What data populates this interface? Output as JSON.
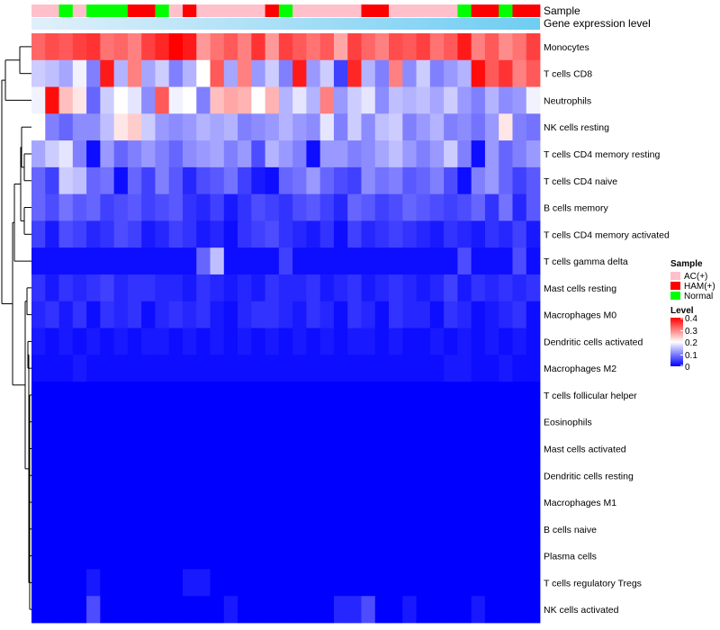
{
  "colors": {
    "low": "#0000ff",
    "mid": "#ffffff",
    "high": "#ff0000",
    "sample_groups": {
      "AC(+)": "#ffc0cb",
      "HAM(+)": "#ff0000",
      "Normal": "#00ff00"
    },
    "expression_bar": {
      "from": "#e0f0fa",
      "to": "#6ecdf2"
    }
  },
  "chart_data": {
    "type": "heatmap",
    "annotations": [
      {
        "label": "Sample",
        "type": "categorical"
      },
      {
        "label": "Gene expression level",
        "type": "gradient"
      }
    ],
    "sample_groups": [
      "AC(+)",
      "AC(+)",
      "Normal",
      "AC(+)",
      "Normal",
      "Normal",
      "Normal",
      "HAM(+)",
      "HAM(+)",
      "Normal",
      "AC(+)",
      "HAM(+)",
      "AC(+)",
      "AC(+)",
      "AC(+)",
      "AC(+)",
      "AC(+)",
      "HAM(+)",
      "Normal",
      "AC(+)",
      "AC(+)",
      "AC(+)",
      "AC(+)",
      "AC(+)",
      "HAM(+)",
      "HAM(+)",
      "AC(+)",
      "AC(+)",
      "AC(+)",
      "AC(+)",
      "AC(+)",
      "Normal",
      "HAM(+)",
      "HAM(+)",
      "Normal",
      "HAM(+)",
      "HAM(+)"
    ],
    "rows": [
      "Monocytes",
      "T cells CD8",
      "Neutrophils",
      "NK cells resting",
      "T cells CD4 memory resting",
      "T cells CD4 naive",
      "B cells memory",
      "T cells CD4 memory activated",
      "T cells gamma delta",
      "Mast cells resting",
      "Macrophages M0",
      "Dendritic cells activated",
      "Macrophages M2",
      "T cells follicular helper",
      "Eosinophils",
      "Mast cells activated",
      "Dendritic cells resting",
      "Macrophages M1",
      "B cells naive",
      "Plasma cells",
      "T cells regulatory  Tregs",
      "NK cells activated"
    ],
    "values": [
      [
        0.32,
        0.34,
        0.33,
        0.35,
        0.36,
        0.31,
        0.32,
        0.3,
        0.35,
        0.37,
        0.4,
        0.38,
        0.28,
        0.31,
        0.33,
        0.3,
        0.36,
        0.28,
        0.35,
        0.33,
        0.31,
        0.33,
        0.27,
        0.35,
        0.32,
        0.3,
        0.34,
        0.33,
        0.35,
        0.31,
        0.33,
        0.38,
        0.3,
        0.33,
        0.29,
        0.31,
        0.35
      ],
      [
        0.16,
        0.15,
        0.13,
        0.19,
        0.1,
        0.38,
        0.14,
        0.3,
        0.13,
        0.16,
        0.1,
        0.14,
        0.2,
        0.33,
        0.13,
        0.3,
        0.12,
        0.16,
        0.1,
        0.38,
        0.12,
        0.16,
        0.05,
        0.37,
        0.14,
        0.1,
        0.3,
        0.11,
        0.16,
        0.1,
        0.12,
        0.14,
        0.39,
        0.33,
        0.36,
        0.3,
        0.33
      ],
      [
        0.19,
        0.39,
        0.25,
        0.22,
        0.08,
        0.16,
        0.2,
        0.18,
        0.11,
        0.33,
        0.19,
        0.2,
        0.1,
        0.25,
        0.27,
        0.26,
        0.2,
        0.26,
        0.14,
        0.18,
        0.14,
        0.3,
        0.12,
        0.16,
        0.18,
        0.11,
        0.15,
        0.14,
        0.15,
        0.13,
        0.16,
        0.12,
        0.1,
        0.14,
        0.11,
        0.12,
        0.19
      ],
      [
        0.2,
        0.1,
        0.08,
        0.11,
        0.11,
        0.15,
        0.22,
        0.24,
        0.16,
        0.12,
        0.11,
        0.12,
        0.14,
        0.13,
        0.14,
        0.1,
        0.11,
        0.12,
        0.14,
        0.12,
        0.11,
        0.18,
        0.1,
        0.16,
        0.11,
        0.15,
        0.16,
        0.1,
        0.12,
        0.14,
        0.1,
        0.11,
        0.09,
        0.12,
        0.22,
        0.1,
        0.09
      ],
      [
        0.13,
        0.16,
        0.18,
        0.1,
        0.01,
        0.12,
        0.08,
        0.1,
        0.12,
        0.1,
        0.08,
        0.11,
        0.12,
        0.13,
        0.1,
        0.12,
        0.06,
        0.14,
        0.12,
        0.1,
        0.01,
        0.12,
        0.12,
        0.1,
        0.11,
        0.13,
        0.15,
        0.12,
        0.1,
        0.12,
        0.16,
        0.1,
        0.01,
        0.12,
        0.08,
        0.1,
        0.12
      ],
      [
        0.08,
        0.05,
        0.16,
        0.15,
        0.08,
        0.09,
        0.01,
        0.08,
        0.05,
        0.1,
        0.07,
        0.03,
        0.06,
        0.07,
        0.09,
        0.05,
        0.02,
        0.01,
        0.08,
        0.09,
        0.12,
        0.08,
        0.06,
        0.05,
        0.11,
        0.09,
        0.1,
        0.07,
        0.08,
        0.1,
        0.06,
        0.01,
        0.1,
        0.12,
        0.08,
        0.05,
        0.07
      ],
      [
        0.08,
        0.06,
        0.09,
        0.07,
        0.08,
        0.05,
        0.06,
        0.07,
        0.05,
        0.06,
        0.07,
        0.04,
        0.03,
        0.05,
        0.02,
        0.04,
        0.06,
        0.05,
        0.04,
        0.06,
        0.07,
        0.05,
        0.03,
        0.08,
        0.07,
        0.05,
        0.06,
        0.08,
        0.07,
        0.06,
        0.05,
        0.06,
        0.08,
        0.04,
        0.09,
        0.03,
        0.07
      ],
      [
        0.05,
        0.02,
        0.06,
        0.05,
        0.03,
        0.04,
        0.06,
        0.05,
        0.02,
        0.03,
        0.05,
        0.04,
        0.02,
        0.03,
        0.01,
        0.04,
        0.05,
        0.06,
        0.04,
        0.03,
        0.02,
        0.04,
        0.01,
        0.05,
        0.03,
        0.04,
        0.05,
        0.04,
        0.03,
        0.02,
        0.04,
        0.03,
        0.02,
        0.04,
        0.03,
        0.05,
        0.02
      ],
      [
        0.01,
        0.01,
        0.01,
        0.01,
        0.01,
        0.01,
        0.01,
        0.01,
        0.01,
        0.01,
        0.01,
        0.01,
        0.08,
        0.15,
        0.01,
        0.01,
        0.01,
        0.01,
        0.05,
        0.01,
        0.01,
        0.01,
        0.01,
        0.01,
        0.01,
        0.01,
        0.01,
        0.01,
        0.01,
        0.01,
        0.01,
        0.06,
        0.01,
        0.01,
        0.01,
        0.06,
        0.01
      ],
      [
        0.04,
        0.02,
        0.04,
        0.03,
        0.04,
        0.05,
        0.03,
        0.04,
        0.04,
        0.03,
        0.03,
        0.02,
        0.04,
        0.03,
        0.02,
        0.03,
        0.02,
        0.04,
        0.03,
        0.03,
        0.04,
        0.02,
        0.03,
        0.04,
        0.02,
        0.03,
        0.04,
        0.03,
        0.02,
        0.03,
        0.05,
        0.02,
        0.04,
        0.03,
        0.04,
        0.03,
        0.04
      ],
      [
        0.03,
        0.04,
        0.02,
        0.04,
        0.01,
        0.04,
        0.03,
        0.04,
        0.01,
        0.03,
        0.04,
        0.03,
        0.04,
        0.02,
        0.01,
        0.03,
        0.04,
        0.04,
        0.03,
        0.02,
        0.04,
        0.03,
        0.01,
        0.04,
        0.03,
        0.01,
        0.04,
        0.03,
        0.03,
        0.01,
        0.04,
        0.03,
        0.01,
        0.02,
        0.03,
        0.04,
        0.01
      ],
      [
        0.02,
        0.01,
        0.02,
        0.01,
        0.02,
        0.01,
        0.02,
        0.01,
        0.02,
        0.02,
        0.01,
        0.02,
        0.01,
        0.02,
        0.01,
        0.02,
        0.01,
        0.02,
        0.01,
        0.02,
        0.01,
        0.02,
        0.01,
        0.02,
        0.02,
        0.01,
        0.02,
        0.01,
        0.01,
        0.02,
        0.01,
        0.02,
        0.01,
        0.02,
        0.01,
        0.02,
        0.01
      ],
      [
        0.01,
        0.01,
        0.01,
        0.02,
        0.01,
        0.01,
        0.01,
        0.01,
        0.01,
        0.01,
        0.01,
        0.01,
        0.01,
        0.01,
        0.01,
        0.01,
        0.01,
        0.01,
        0.01,
        0.01,
        0.01,
        0.01,
        0.01,
        0.01,
        0.01,
        0.01,
        0.01,
        0.01,
        0.01,
        0.01,
        0.02,
        0.02,
        0.01,
        0.01,
        0.02,
        0.01,
        0.01
      ],
      [
        0,
        0,
        0,
        0,
        0,
        0,
        0,
        0,
        0,
        0,
        0,
        0,
        0,
        0,
        0,
        0,
        0,
        0,
        0,
        0,
        0,
        0,
        0,
        0,
        0,
        0,
        0,
        0,
        0,
        0,
        0,
        0,
        0,
        0,
        0,
        0,
        0
      ],
      [
        0,
        0,
        0,
        0,
        0,
        0,
        0,
        0,
        0,
        0,
        0,
        0,
        0,
        0,
        0,
        0,
        0,
        0,
        0,
        0,
        0,
        0,
        0,
        0,
        0,
        0,
        0,
        0,
        0,
        0,
        0,
        0,
        0,
        0,
        0,
        0,
        0
      ],
      [
        0,
        0,
        0,
        0,
        0,
        0,
        0,
        0,
        0,
        0,
        0,
        0,
        0,
        0,
        0,
        0,
        0,
        0,
        0,
        0,
        0,
        0,
        0,
        0,
        0,
        0,
        0,
        0,
        0,
        0,
        0,
        0,
        0,
        0,
        0,
        0,
        0
      ],
      [
        0,
        0,
        0,
        0,
        0,
        0,
        0,
        0,
        0,
        0,
        0,
        0,
        0,
        0,
        0,
        0,
        0,
        0,
        0,
        0,
        0,
        0,
        0,
        0,
        0,
        0,
        0,
        0,
        0,
        0,
        0,
        0,
        0,
        0,
        0,
        0,
        0
      ],
      [
        0,
        0,
        0,
        0,
        0,
        0,
        0,
        0,
        0,
        0,
        0,
        0,
        0,
        0,
        0,
        0,
        0,
        0,
        0,
        0,
        0,
        0,
        0,
        0,
        0,
        0,
        0,
        0,
        0,
        0,
        0,
        0,
        0,
        0,
        0,
        0,
        0
      ],
      [
        0,
        0,
        0,
        0,
        0,
        0,
        0,
        0,
        0,
        0,
        0,
        0,
        0,
        0,
        0,
        0,
        0,
        0,
        0,
        0,
        0,
        0,
        0,
        0,
        0,
        0,
        0,
        0,
        0,
        0,
        0,
        0,
        0,
        0,
        0,
        0,
        0
      ],
      [
        0,
        0,
        0,
        0,
        0,
        0,
        0,
        0,
        0,
        0,
        0,
        0,
        0,
        0,
        0,
        0,
        0,
        0,
        0,
        0,
        0,
        0,
        0,
        0,
        0,
        0,
        0,
        0,
        0,
        0,
        0,
        0,
        0,
        0,
        0,
        0,
        0
      ],
      [
        0,
        0,
        0,
        0,
        0.02,
        0,
        0,
        0,
        0,
        0,
        0,
        0.02,
        0.02,
        0,
        0,
        0,
        0,
        0,
        0,
        0,
        0,
        0,
        0,
        0,
        0,
        0,
        0,
        0,
        0,
        0,
        0,
        0,
        0,
        0,
        0,
        0,
        0
      ],
      [
        0,
        0,
        0,
        0,
        0.06,
        0,
        0,
        0,
        0,
        0,
        0,
        0,
        0,
        0,
        0.02,
        0,
        0,
        0,
        0,
        0,
        0,
        0,
        0.03,
        0.03,
        0.06,
        0,
        0,
        0.02,
        0,
        0,
        0,
        0,
        0.02,
        0,
        0,
        0,
        0
      ]
    ],
    "legend": {
      "sample": {
        "title": "Sample",
        "items": [
          "AC(+)",
          "HAM(+)",
          "Normal"
        ]
      },
      "level": {
        "title": "Level",
        "ticks": [
          "0.4",
          "0.3",
          "0.2",
          "0.1",
          "0"
        ],
        "range": [
          0,
          0.4
        ]
      }
    }
  }
}
